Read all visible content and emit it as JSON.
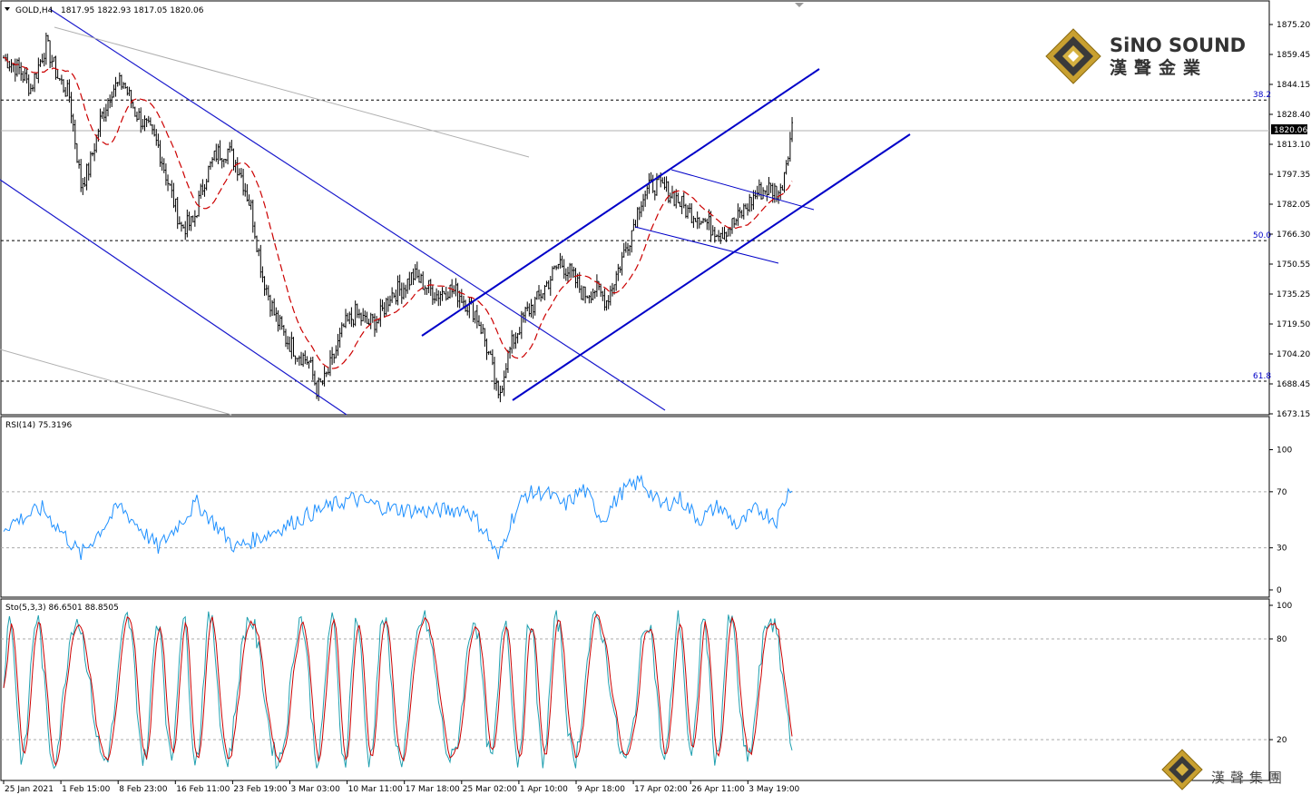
{
  "header": {
    "symbol": "GOLD,H4",
    "ohlc": "1817.95 1822.93 1817.05 1820.06"
  },
  "price_axis": {
    "ticks": [
      "1875.20",
      "1859.45",
      "1844.15",
      "1828.40",
      "1813.10",
      "1797.35",
      "1782.05",
      "1766.30",
      "1750.55",
      "1735.25",
      "1719.50",
      "1704.20",
      "1688.45",
      "1673.15"
    ],
    "current": "1820.06"
  },
  "fib_levels": [
    {
      "label": "38.2",
      "price": 1836.0
    },
    {
      "label": "50.0",
      "price": 1763.0
    },
    {
      "label": "61.8",
      "price": 1690.0
    }
  ],
  "rsi": {
    "title": "RSI(14) 75.3196",
    "ticks": [
      "100",
      "70",
      "30",
      "0"
    ]
  },
  "stochastic": {
    "title": "Sto(5,3,3) 86.6501 88.8505",
    "ticks": [
      "100",
      "80",
      "20"
    ]
  },
  "time_axis": {
    "labels": [
      "25 Jan 2021",
      "1 Feb 15:00",
      "8 Feb 23:00",
      "16 Feb 11:00",
      "23 Feb 19:00",
      "3 Mar 03:00",
      "10 Mar 11:00",
      "17 Mar 18:00",
      "25 Mar 02:00",
      "1 Apr 10:00",
      "9 Apr 18:00",
      "17 Apr 02:00",
      "26 Apr 11:00",
      "3 May 19:00"
    ]
  },
  "logo": {
    "name": "SiNO SOUND",
    "chinese": "漢聲金業",
    "footer_chinese": "漢聲集團"
  },
  "colors": {
    "candle": "#000000",
    "ma": "#cc0000",
    "channel": "#0000c8",
    "rsi": "#1e90ff",
    "sto_main": "#20a0b0",
    "sto_signal": "#cc0000"
  },
  "chart_data": [
    {
      "type": "candlestick",
      "title": "GOLD,H4",
      "ylim": [
        1673.15,
        1883
      ],
      "close_path_keypoints": [
        [
          0,
          1858
        ],
        [
          8,
          1852
        ],
        [
          14,
          1842
        ],
        [
          22,
          1865
        ],
        [
          28,
          1848
        ],
        [
          34,
          1838
        ],
        [
          40,
          1792
        ],
        [
          44,
          1800
        ],
        [
          50,
          1825
        ],
        [
          56,
          1842
        ],
        [
          62,
          1845
        ],
        [
          68,
          1830
        ],
        [
          74,
          1822
        ],
        [
          80,
          1812
        ],
        [
          86,
          1790
        ],
        [
          92,
          1770
        ],
        [
          98,
          1772
        ],
        [
          104,
          1795
        ],
        [
          110,
          1808
        ],
        [
          116,
          1810
        ],
        [
          122,
          1800
        ],
        [
          128,
          1780
        ],
        [
          134,
          1745
        ],
        [
          140,
          1725
        ],
        [
          146,
          1712
        ],
        [
          152,
          1705
        ],
        [
          158,
          1700
        ],
        [
          162,
          1686
        ],
        [
          166,
          1690
        ],
        [
          170,
          1700
        ],
        [
          176,
          1718
        ],
        [
          182,
          1725
        ],
        [
          188,
          1720
        ],
        [
          194,
          1722
        ],
        [
          200,
          1735
        ],
        [
          206,
          1738
        ],
        [
          212,
          1745
        ],
        [
          218,
          1740
        ],
        [
          224,
          1735
        ],
        [
          230,
          1738
        ],
        [
          236,
          1735
        ],
        [
          240,
          1730
        ],
        [
          244,
          1726
        ],
        [
          248,
          1715
        ],
        [
          252,
          1700
        ],
        [
          256,
          1680
        ],
        [
          260,
          1700
        ],
        [
          264,
          1712
        ],
        [
          270,
          1725
        ],
        [
          276,
          1732
        ],
        [
          282,
          1742
        ],
        [
          288,
          1752
        ],
        [
          294,
          1745
        ],
        [
          300,
          1735
        ],
        [
          306,
          1738
        ],
        [
          312,
          1732
        ],
        [
          318,
          1748
        ],
        [
          324,
          1765
        ],
        [
          330,
          1785
        ],
        [
          336,
          1792
        ],
        [
          342,
          1790
        ],
        [
          348,
          1785
        ],
        [
          354,
          1778
        ],
        [
          360,
          1776
        ],
        [
          366,
          1770
        ],
        [
          372,
          1768
        ],
        [
          378,
          1772
        ],
        [
          384,
          1780
        ],
        [
          390,
          1788
        ],
        [
          396,
          1790
        ],
        [
          402,
          1788
        ],
        [
          408,
          1822
        ]
      ],
      "ma_series": "20-period moving average, dashed"
    },
    {
      "type": "line",
      "title": "RSI(14) 75.3196",
      "ylim": [
        0,
        100
      ],
      "levels": [
        70,
        30
      ],
      "keypoints": [
        [
          0,
          45
        ],
        [
          20,
          58
        ],
        [
          40,
          25
        ],
        [
          60,
          60
        ],
        [
          80,
          30
        ],
        [
          100,
          62
        ],
        [
          120,
          30
        ],
        [
          140,
          42
        ],
        [
          160,
          55
        ],
        [
          180,
          65
        ],
        [
          200,
          58
        ],
        [
          220,
          56
        ],
        [
          240,
          58
        ],
        [
          250,
          40
        ],
        [
          256,
          22
        ],
        [
          262,
          48
        ],
        [
          270,
          68
        ],
        [
          280,
          70
        ],
        [
          290,
          60
        ],
        [
          300,
          72
        ],
        [
          310,
          50
        ],
        [
          320,
          70
        ],
        [
          330,
          78
        ],
        [
          340,
          60
        ],
        [
          350,
          65
        ],
        [
          360,
          50
        ],
        [
          370,
          60
        ],
        [
          380,
          45
        ],
        [
          390,
          58
        ],
        [
          400,
          50
        ],
        [
          408,
          76
        ]
      ]
    },
    {
      "type": "line",
      "title": "Sto(5,3,3) 86.6501 88.8505",
      "ylim": [
        0,
        100
      ],
      "levels": [
        80,
        20
      ],
      "series": [
        {
          "name": "main",
          "values_desc": "oscillating %K"
        },
        {
          "name": "signal",
          "values_desc": "smoothed %D"
        }
      ]
    }
  ]
}
